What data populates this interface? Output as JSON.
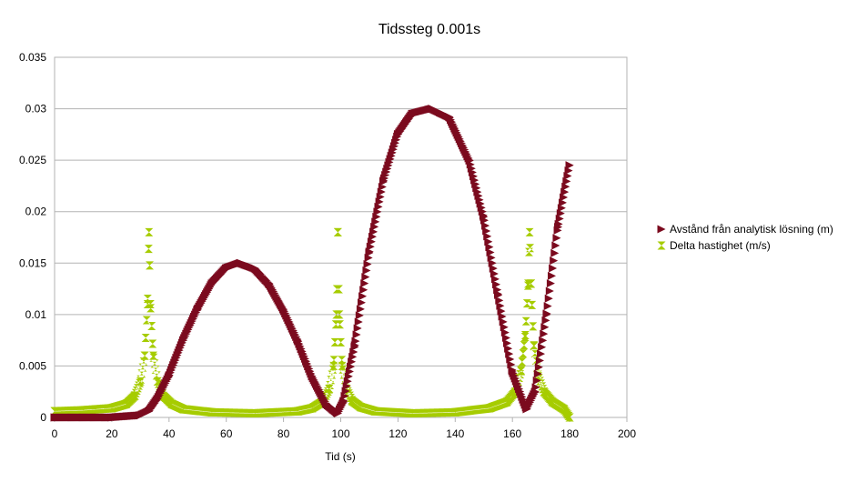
{
  "chart_data": {
    "type": "scatter",
    "title": "Tidssteg 0.001s",
    "xlabel": "Tid (s)",
    "ylabel": "",
    "xlim": [
      0,
      200
    ],
    "ylim": [
      0,
      0.035
    ],
    "x_ticks": [
      "0",
      "20",
      "40",
      "60",
      "80",
      "100",
      "120",
      "140",
      "160",
      "180",
      "200"
    ],
    "y_ticks": [
      "0",
      "0.005",
      "0.01",
      "0.015",
      "0.02",
      "0.025",
      "0.03",
      "0.035"
    ],
    "grid": "horizontal",
    "legend_position": "right",
    "series": [
      {
        "name": "Avstånd från analytisk lösning (m)",
        "color": "#7b0a1e",
        "marker": "triangle-right",
        "x": [
          0,
          20,
          30,
          33,
          36,
          40,
          45,
          50,
          55,
          60,
          65,
          70,
          75,
          80,
          85,
          90,
          95,
          99,
          101,
          105,
          110,
          115,
          120,
          125,
          132,
          138,
          145,
          150,
          155,
          160,
          165,
          168,
          172,
          176,
          180
        ],
        "y": [
          0,
          0,
          0.0002,
          0.0006,
          0.0018,
          0.004,
          0.0075,
          0.0105,
          0.013,
          0.0145,
          0.015,
          0.0145,
          0.013,
          0.0105,
          0.0075,
          0.004,
          0.0013,
          0.0004,
          0.0015,
          0.007,
          0.016,
          0.023,
          0.0275,
          0.0295,
          0.03,
          0.0292,
          0.025,
          0.0195,
          0.012,
          0.0045,
          0.0008,
          0.0025,
          0.01,
          0.0185,
          0.0245
        ]
      },
      {
        "name": "Delta hastighet (m/s)",
        "color": "#a6cc00",
        "marker": "hourglass",
        "x": [
          0,
          10,
          20,
          25,
          28,
          30,
          31.5,
          32.5,
          33,
          33.5,
          34.5,
          36,
          38,
          41,
          45,
          55,
          70,
          85,
          90,
          94,
          96,
          97.5,
          98.5,
          99,
          99.5,
          100.5,
          102,
          104,
          107,
          112,
          125,
          140,
          152,
          158,
          161,
          163,
          164.5,
          165.5,
          166,
          166.5,
          167.5,
          169,
          171,
          174,
          178,
          180
        ],
        "y": [
          0.0006,
          0.0007,
          0.0009,
          0.0013,
          0.0021,
          0.0035,
          0.006,
          0.011,
          0.018,
          0.011,
          0.006,
          0.0035,
          0.0021,
          0.0013,
          0.0008,
          0.0005,
          0.0004,
          0.0006,
          0.0009,
          0.0016,
          0.0028,
          0.005,
          0.01,
          0.018,
          0.01,
          0.005,
          0.0028,
          0.0016,
          0.001,
          0.0006,
          0.0004,
          0.0005,
          0.0009,
          0.0015,
          0.0025,
          0.0045,
          0.008,
          0.013,
          0.018,
          0.013,
          0.007,
          0.004,
          0.0025,
          0.0015,
          0.0008,
          0
        ]
      }
    ]
  }
}
